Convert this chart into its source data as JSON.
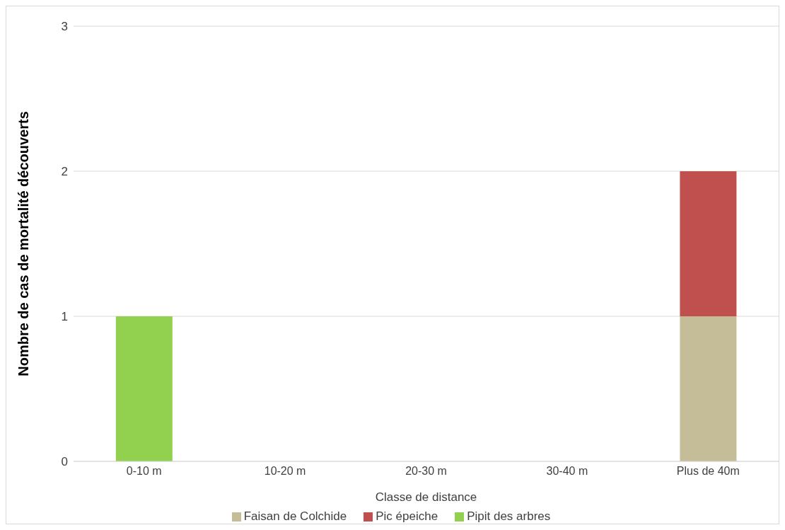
{
  "chart_data": {
    "type": "bar",
    "stacked": true,
    "xlabel": "Classe de distance",
    "ylabel": "Nombre de cas de mortalité découverts",
    "categories": [
      "0-10 m",
      "10-20 m",
      "20-30 m",
      "30-40 m",
      "Plus de 40m"
    ],
    "series": [
      {
        "name": "Faisan de Colchide",
        "color": "#c4bd97",
        "values": [
          0,
          0,
          0,
          0,
          1
        ]
      },
      {
        "name": "Pic épeiche",
        "color": "#c0504d",
        "values": [
          0,
          0,
          0,
          0,
          1
        ]
      },
      {
        "name": "Pipit des arbres",
        "color": "#92d050",
        "values": [
          1,
          0,
          0,
          0,
          0
        ]
      }
    ],
    "ylim": [
      0,
      3
    ],
    "yticks": [
      0,
      1,
      2,
      3
    ],
    "grid": "y",
    "legend": "bottom"
  }
}
